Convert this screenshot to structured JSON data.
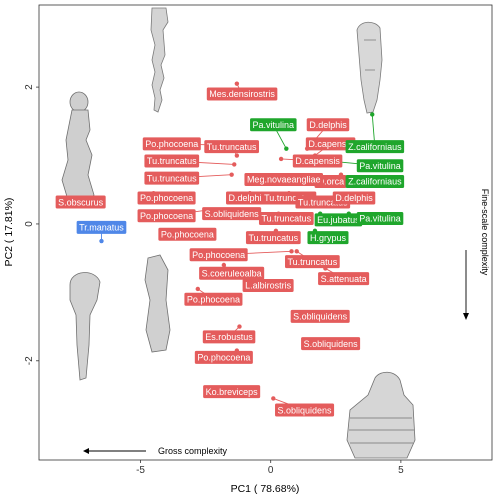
{
  "chart_data": {
    "type": "scatter",
    "xlabel": "PC1 ( 78.68%)",
    "ylabel": "PC2 ( 17.81%)",
    "xlim": [
      -8.9,
      8.5
    ],
    "ylim": [
      -3.45,
      3.2
    ],
    "xticks": [
      -5,
      0,
      5
    ],
    "yticks": [
      -2,
      0,
      2
    ],
    "grid": false,
    "annotations": {
      "gross": "Gross complexity",
      "fine": "Fine-scale complexity"
    },
    "colors": {
      "red": "#e45c5c",
      "green": "#1fa62c",
      "blue": "#4f87e8"
    },
    "points": [
      {
        "label": "Mes.densirostris",
        "x": -1.3,
        "y": 2.05,
        "lx": -1.1,
        "ly": 1.9,
        "group": "red"
      },
      {
        "label": "Pa.vitulina",
        "x": 0.6,
        "y": 1.1,
        "lx": 0.1,
        "ly": 1.45,
        "group": "green"
      },
      {
        "label": "D.delphis",
        "x": 1.4,
        "y": 1.1,
        "lx": 2.2,
        "ly": 1.45,
        "group": "red"
      },
      {
        "label": "D.capensis",
        "x": 1.7,
        "y": 1.0,
        "lx": 2.3,
        "ly": 1.17,
        "group": "red"
      },
      {
        "label": "Z.californiaus",
        "x": 3.9,
        "y": 1.6,
        "lx": 4.0,
        "ly": 1.13,
        "group": "green"
      },
      {
        "label": "Po.phocoena",
        "x": -1.5,
        "y": 1.15,
        "lx": -3.8,
        "ly": 1.17,
        "group": "red"
      },
      {
        "label": "Tu.truncatus",
        "x": -1.3,
        "y": 1.0,
        "lx": -1.5,
        "ly": 1.13,
        "group": "red"
      },
      {
        "label": "D.capensis",
        "x": 0.4,
        "y": 0.95,
        "lx": 1.8,
        "ly": 0.92,
        "group": "red"
      },
      {
        "label": "Pa.vitulina",
        "x": 1.4,
        "y": 0.95,
        "lx": 4.2,
        "ly": 0.85,
        "group": "green"
      },
      {
        "label": "Tu.truncatus",
        "x": -1.4,
        "y": 0.87,
        "lx": -3.8,
        "ly": 0.92,
        "group": "red"
      },
      {
        "label": "O.orca",
        "x": 2.7,
        "y": 0.72,
        "lx": 2.3,
        "ly": 0.62,
        "group": "red"
      },
      {
        "label": "Tu.truncatus",
        "x": -1.5,
        "y": 0.72,
        "lx": -3.8,
        "ly": 0.67,
        "group": "red"
      },
      {
        "label": "Meg.novaeangliae",
        "x": 0.4,
        "y": 0.65,
        "lx": 0.5,
        "ly": 0.65,
        "group": "red"
      },
      {
        "label": "Z.californiaus",
        "x": 2.7,
        "y": 0.65,
        "lx": 4.0,
        "ly": 0.62,
        "group": "green"
      },
      {
        "label": "Po.phocoena",
        "x": -4.5,
        "y": 0.45,
        "lx": -4.0,
        "ly": 0.38,
        "group": "red"
      },
      {
        "label": "D.delphis",
        "x": -0.8,
        "y": 0.45,
        "lx": -0.9,
        "ly": 0.38,
        "group": "red"
      },
      {
        "label": "Tu.truncatus",
        "x": 0.7,
        "y": 0.45,
        "lx": 0.7,
        "ly": 0.38,
        "group": "red"
      },
      {
        "label": "Tu.truncatus",
        "x": 1.6,
        "y": 0.35,
        "lx": 2.0,
        "ly": 0.32,
        "group": "red"
      },
      {
        "label": "D.delphis",
        "x": 2.3,
        "y": 0.38,
        "lx": 3.2,
        "ly": 0.38,
        "group": "red"
      },
      {
        "label": "S.obscurus",
        "x": -7.9,
        "y": 0.33,
        "lx": -7.3,
        "ly": 0.32,
        "group": "red"
      },
      {
        "label": "Po.phocoena",
        "x": -2.5,
        "y": 0.2,
        "lx": -4.0,
        "ly": 0.12,
        "group": "red"
      },
      {
        "label": "S.obliquidens",
        "x": -1.5,
        "y": 0.2,
        "lx": -1.5,
        "ly": 0.15,
        "group": "red"
      },
      {
        "label": "Tu.truncatus",
        "x": 0.3,
        "y": 0.15,
        "lx": 0.6,
        "ly": 0.08,
        "group": "red"
      },
      {
        "label": "Eu.jubatus",
        "x": 1.9,
        "y": 0.15,
        "lx": 2.6,
        "ly": 0.06,
        "group": "green"
      },
      {
        "label": "Pa.vitulina",
        "x": 3.0,
        "y": 0.15,
        "lx": 4.2,
        "ly": 0.08,
        "group": "green"
      },
      {
        "label": "Tr.manatus",
        "x": -6.5,
        "y": -0.25,
        "lx": -6.5,
        "ly": -0.05,
        "group": "blue"
      },
      {
        "label": "Po.phocoena",
        "x": -3.8,
        "y": -0.15,
        "lx": -3.2,
        "ly": -0.15,
        "group": "red"
      },
      {
        "label": "Tu.truncatus",
        "x": 0.2,
        "y": -0.1,
        "lx": 0.1,
        "ly": -0.2,
        "group": "red"
      },
      {
        "label": "H.grypus",
        "x": 1.7,
        "y": -0.1,
        "lx": 2.2,
        "ly": -0.2,
        "group": "green"
      },
      {
        "label": "Po.phocoena",
        "x": 0.8,
        "y": -0.4,
        "lx": -2.0,
        "ly": -0.45,
        "group": "red"
      },
      {
        "label": "Tu.truncatus",
        "x": 1.0,
        "y": -0.4,
        "lx": 1.6,
        "ly": -0.55,
        "group": "red"
      },
      {
        "label": "S.coeruleoalba",
        "x": -1.8,
        "y": -0.6,
        "lx": -1.5,
        "ly": -0.72,
        "group": "red"
      },
      {
        "label": "S.attenuata",
        "x": 2.1,
        "y": -0.65,
        "lx": 2.8,
        "ly": -0.8,
        "group": "red"
      },
      {
        "label": "L.albirostris",
        "x": -0.8,
        "y": -0.95,
        "lx": -0.1,
        "ly": -0.9,
        "group": "red"
      },
      {
        "label": "Po.phocoena",
        "x": -2.8,
        "y": -0.95,
        "lx": -2.2,
        "ly": -1.1,
        "group": "red"
      },
      {
        "label": "S.obliquidens",
        "x": 1.2,
        "y": -1.3,
        "lx": 1.9,
        "ly": -1.35,
        "group": "red"
      },
      {
        "label": "Es.robustus",
        "x": -1.2,
        "y": -1.5,
        "lx": -1.6,
        "ly": -1.65,
        "group": "red"
      },
      {
        "label": "S.obliquidens",
        "x": 1.9,
        "y": -1.7,
        "lx": 2.3,
        "ly": -1.75,
        "group": "red"
      },
      {
        "label": "Po.phocoena",
        "x": -1.3,
        "y": -1.85,
        "lx": -1.8,
        "ly": -1.95,
        "group": "red"
      },
      {
        "label": "Ko.breviceps",
        "x": -1.3,
        "y": -2.45,
        "lx": -1.5,
        "ly": -2.45,
        "group": "red"
      },
      {
        "label": "S.obliquidens",
        "x": 0.1,
        "y": -2.55,
        "lx": 1.3,
        "ly": -2.72,
        "group": "red"
      }
    ]
  }
}
